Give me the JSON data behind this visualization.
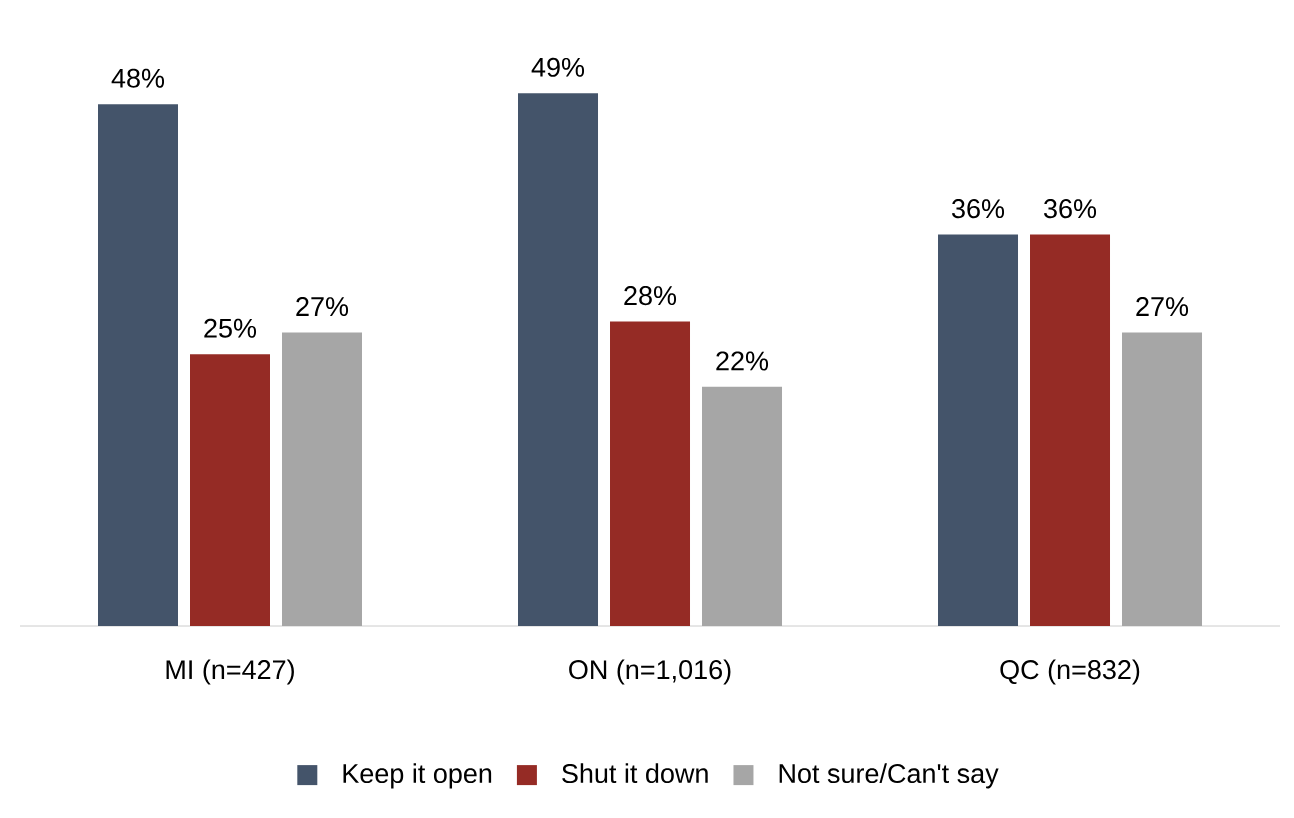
{
  "chart_data": {
    "type": "bar",
    "categories": [
      "MI (n=427)",
      "ON (n=1,016)",
      "QC (n=832)"
    ],
    "series": [
      {
        "name": "Keep it open",
        "color": "#44546a",
        "values": [
          48,
          49,
          36
        ],
        "value_labels": [
          "48%",
          "49%",
          "36%"
        ]
      },
      {
        "name": "Shut it down",
        "color": "#952b25",
        "values": [
          25,
          28,
          36
        ],
        "value_labels": [
          "25%",
          "28%",
          "36%"
        ]
      },
      {
        "name": "Not sure/Can't say",
        "color": "#a6a6a6",
        "values": [
          27,
          22,
          27
        ],
        "value_labels": [
          "27%",
          "22%",
          "27%"
        ]
      }
    ],
    "legend": "bottom"
  }
}
